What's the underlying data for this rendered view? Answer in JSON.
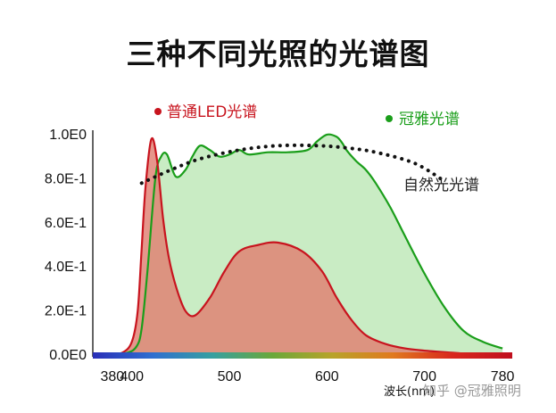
{
  "title": "三种不同光照的光谱图",
  "chart_data": {
    "type": "area",
    "title": "三种不同光照的光谱图",
    "xlabel": "波长(nm)",
    "ylabel": "",
    "xlim": [
      360,
      790
    ],
    "ylim": [
      0,
      1.02
    ],
    "x_ticks": [
      {
        "value": 380,
        "label": "380"
      },
      {
        "value": 400,
        "label": "400"
      },
      {
        "value": 500,
        "label": "500"
      },
      {
        "value": 600,
        "label": "600"
      },
      {
        "value": 700,
        "label": "700"
      },
      {
        "value": 780,
        "label": "780"
      }
    ],
    "y_ticks": [
      {
        "value": 0.0,
        "label": "0.0E0"
      },
      {
        "value": 0.2,
        "label": "2.0E-1"
      },
      {
        "value": 0.4,
        "label": "4.0E-1"
      },
      {
        "value": 0.6,
        "label": "6.0E-1"
      },
      {
        "value": 0.8,
        "label": "8.0E-1"
      },
      {
        "value": 1.0,
        "label": "1.0E0"
      }
    ],
    "series": [
      {
        "name": "冠雅光谱",
        "color": "#1a9e1a",
        "fill": "#c9ecc4",
        "x": [
          375,
          395,
          405,
          410,
          416,
          424,
          430,
          436,
          445,
          455,
          462,
          470,
          480,
          490,
          500,
          510,
          520,
          540,
          560,
          580,
          590,
          600,
          610,
          616,
          620,
          630,
          640,
          650,
          665,
          680,
          700,
          720,
          740,
          760,
          780
        ],
        "y": [
          0.0,
          0.01,
          0.04,
          0.12,
          0.38,
          0.8,
          0.9,
          0.91,
          0.81,
          0.84,
          0.9,
          0.95,
          0.93,
          0.9,
          0.91,
          0.93,
          0.91,
          0.92,
          0.92,
          0.93,
          0.97,
          1.0,
          0.99,
          0.96,
          0.93,
          0.88,
          0.84,
          0.78,
          0.67,
          0.54,
          0.37,
          0.22,
          0.11,
          0.06,
          0.03
        ]
      },
      {
        "name": "普通LED光谱",
        "color": "#c8141e",
        "fill": "#e07f72",
        "x": [
          375,
          390,
          400,
          406,
          410,
          414,
          420,
          426,
          432,
          438,
          446,
          455,
          465,
          480,
          495,
          510,
          530,
          550,
          575,
          595,
          610,
          625,
          640,
          660,
          680,
          700,
          730,
          760,
          780
        ],
        "y": [
          0.0,
          0.01,
          0.06,
          0.2,
          0.48,
          0.76,
          0.98,
          0.88,
          0.62,
          0.44,
          0.3,
          0.2,
          0.18,
          0.26,
          0.38,
          0.47,
          0.5,
          0.51,
          0.47,
          0.38,
          0.26,
          0.16,
          0.09,
          0.05,
          0.03,
          0.02,
          0.01,
          0.0,
          0.0
        ]
      },
      {
        "name": "自然光光谱",
        "color": "#111111",
        "style": "dotted",
        "x": [
          410,
          440,
          470,
          510,
          550,
          590,
          620,
          650,
          690,
          720
        ],
        "y": [
          0.78,
          0.84,
          0.89,
          0.93,
          0.95,
          0.95,
          0.94,
          0.92,
          0.87,
          0.79
        ]
      }
    ],
    "legend": [
      {
        "label": "普通LED光谱",
        "color": "#c8141e",
        "placement": "top-left"
      },
      {
        "label": "冠雅光谱",
        "color": "#1a9e1a",
        "placement": "top-right"
      }
    ],
    "annotations": [
      {
        "text": "自然光光谱"
      }
    ],
    "grid": false
  },
  "watermark": "知乎 @冠雅照明",
  "colors": {
    "axis": "#222222",
    "spectrum_bar": [
      "#2a2fb8",
      "#2f6fd0",
      "#36a0a0",
      "#6aa83a",
      "#b8a32a",
      "#e07a1e",
      "#d8281e",
      "#c0101e"
    ]
  }
}
